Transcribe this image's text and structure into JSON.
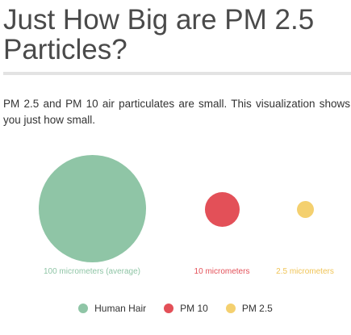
{
  "title": "Just How Big are PM 2.5 Particles?",
  "intro": "PM 2.5 and PM 10 air particulates are small. This visualization shows you just how small.",
  "particles": [
    {
      "name": "Human Hair",
      "size_label": "100 micrometers (average)",
      "diameter_um": 100,
      "color": "#8fc5a6"
    },
    {
      "name": "PM 10",
      "size_label": "10 micrometers",
      "diameter_um": 10,
      "color": "#e35058"
    },
    {
      "name": "PM 2.5",
      "size_label": "2.5 micrometers",
      "diameter_um": 2.5,
      "color": "#f4d06f"
    }
  ],
  "label_colors": {
    "hair": "#8fc5a6",
    "pm10": "#e35058",
    "pm25": "#f0c456"
  }
}
